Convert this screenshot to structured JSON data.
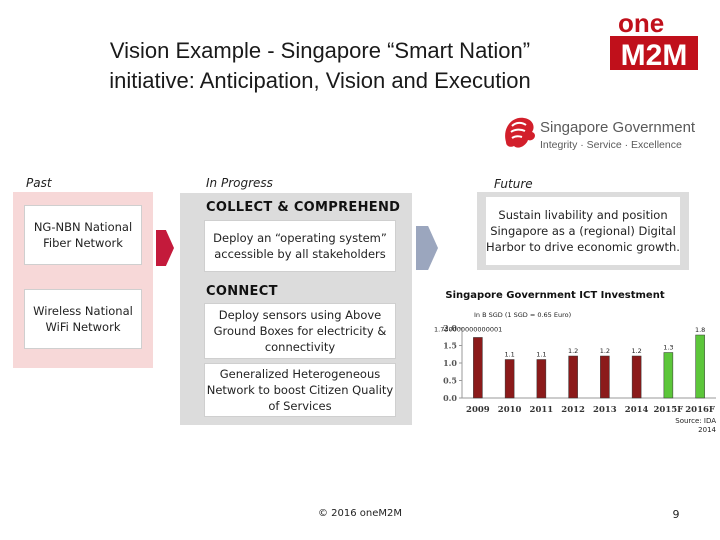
{
  "slide": {
    "title_line1": "Vision Example - Singapore “Smart Nation”",
    "title_line2": "initiative: Anticipation, Vision and Execution",
    "footer": "© 2016 oneM2M",
    "page_number": "9"
  },
  "logo": {
    "line1": "one",
    "line2": "M2M"
  },
  "government": {
    "name": "Singapore Government",
    "tagline": "Integrity · Service · Excellence"
  },
  "labels": {
    "past": "Past",
    "in_progress": "In Progress",
    "future": "Future"
  },
  "past": {
    "boxes": [
      {
        "text": "NG-NBN National Fiber Network"
      },
      {
        "text": "Wireless National WiFi Network"
      }
    ]
  },
  "in_progress": {
    "collect_title": "COLLECT & COMPREHEND",
    "collect_box": "Deploy an “operating system” accessible by all stakeholders",
    "connect_title": "CONNECT",
    "connect_box1": "Deploy sensors using Above Ground Boxes for electricity & connectivity",
    "connect_box2": "Generalized Heterogeneous Network to boost Citizen Quality of Services"
  },
  "future": {
    "text": "Sustain livability and position Singapore as a (regional) Digital Harbor to drive economic growth."
  },
  "chart_data": {
    "type": "bar",
    "title": "Singapore Government ICT Investment",
    "subtitle": "In B SGD (1 SGD = 0.65 Euro)",
    "categories": [
      "2009",
      "2010",
      "2011",
      "2012",
      "2013",
      "2014",
      "2015F",
      "2016F"
    ],
    "values": [
      1.73,
      1.1,
      1.1,
      1.2,
      1.2,
      1.2,
      1.3,
      1.8
    ],
    "value_labels": [
      "1.730000000000001",
      "1.1",
      "1.1",
      "1.2",
      "1.2",
      "1.2",
      "1.3",
      "1.8"
    ],
    "bar_colors": [
      "#8b1a1a",
      "#8b1a1a",
      "#8b1a1a",
      "#8b1a1a",
      "#8b1a1a",
      "#8b1a1a",
      "#5cc63a",
      "#5cc63a"
    ],
    "y_ticks": [
      "0.0",
      "0.5",
      "1.0",
      "1.5",
      "2.0"
    ],
    "tick_values": [
      0,
      0.5,
      1.0,
      1.5,
      2.0
    ],
    "ylim": [
      0,
      2.0
    ],
    "source": "Source: IDA 2014"
  }
}
